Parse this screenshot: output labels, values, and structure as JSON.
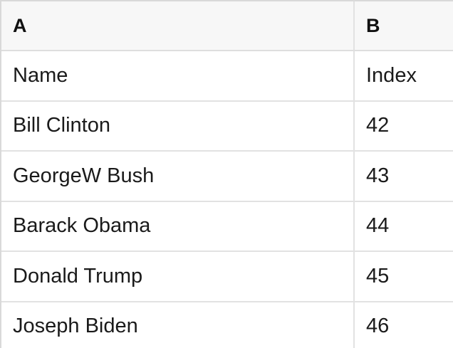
{
  "table": {
    "columns": [
      {
        "key": "A",
        "label": "A"
      },
      {
        "key": "B",
        "label": "B"
      }
    ],
    "rows": [
      {
        "name": "Name",
        "index": "Index"
      },
      {
        "name": "Bill Clinton",
        "index": "42"
      },
      {
        "name": "GeorgeW Bush",
        "index": "43"
      },
      {
        "name": "Barack Obama",
        "index": "44"
      },
      {
        "name": "Donald Trump",
        "index": "45"
      },
      {
        "name": "Joseph Biden",
        "index": "46"
      }
    ]
  },
  "colors": {
    "header_background": "#f7f7f7",
    "border": "#e2e2e2",
    "outer_border": "#d9d9d9",
    "text": "#1a1a1a"
  }
}
